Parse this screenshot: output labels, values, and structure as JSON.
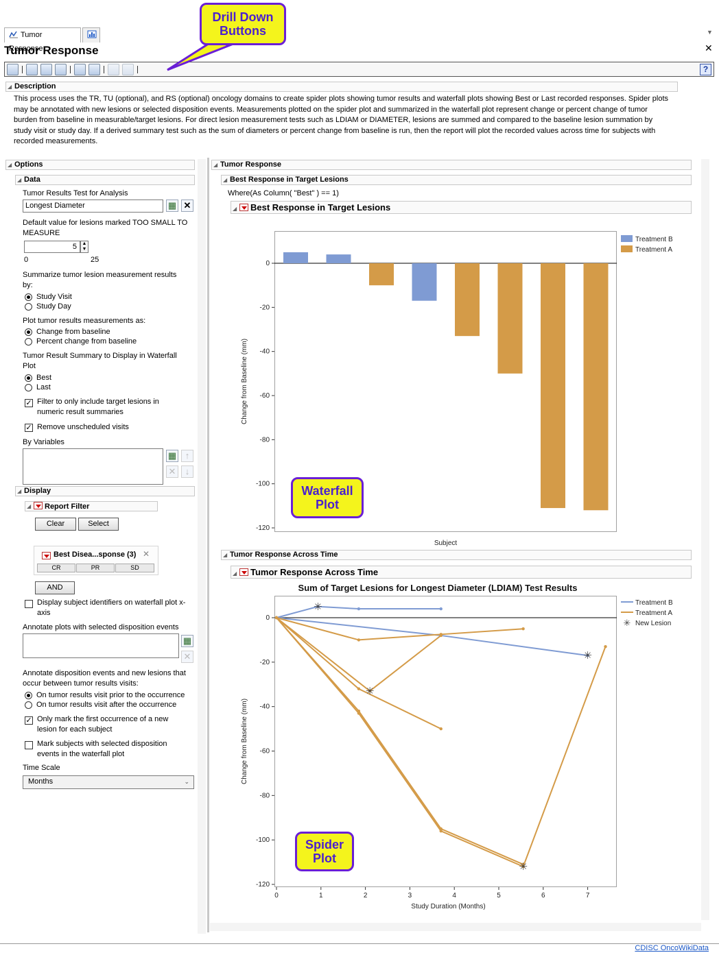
{
  "tabs": [
    {
      "label": "Tumor Response",
      "icon": "tumor-response-icon"
    },
    {
      "label": "",
      "icon": "chart-icon"
    }
  ],
  "window_title": "Tumor Response",
  "callouts": {
    "drill_down": "Drill Down Buttons",
    "waterfall": "Waterfall Plot",
    "spider": "Spider Plot"
  },
  "description": {
    "header": "Description",
    "text": "This process uses the TR, TU (optional), and RS (optional) oncology domains to create spider plots showing tumor results and waterfall plots showing Best or Last recorded responses. Spider plots may be annotated with new lesions or selected disposition events. Measurements plotted on the spider plot and summarized in the waterfall plot represent change or percent change of tumor burden from baseline in measurable/target lesions. For direct lesion measurement tests such as LDIAM or DIAMETER, lesions are summed and compared to the baseline lesion summation by study visit or study day. If a derived summary test such as the sum of diameters or percent change from baseline is run, then the report will plot the recorded values across time for subjects with recorded measurements."
  },
  "options": {
    "header": "Options",
    "data_header": "Data",
    "test_label": "Tumor Results Test for Analysis",
    "test_value": "Longest Diameter",
    "default_label": "Default value for lesions marked TOO SMALL TO MEASURE",
    "default_value": "5",
    "slider_min": "0",
    "slider_max": "25",
    "summarize_label": "Summarize tumor lesion measurement results by:",
    "summarize_opts": [
      "Study Visit",
      "Study Day"
    ],
    "plot_as_label": "Plot tumor results measurements as:",
    "plot_as_opts": [
      "Change from baseline",
      "Percent change from baseline"
    ],
    "summary_label": "Tumor Result Summary to Display in Waterfall Plot",
    "summary_opts": [
      "Best",
      "Last"
    ],
    "filter_target": "Filter to only include target lesions in numeric result summaries",
    "remove_unsched": "Remove unscheduled visits",
    "by_vars_label": "By Variables",
    "display_header": "Display",
    "report_filter": "Report Filter",
    "clear": "Clear",
    "select": "Select",
    "filter_title": "Best Disea...sponse (3)",
    "filter_levels": [
      "CR",
      "PR",
      "SD"
    ],
    "and_btn": "AND",
    "display_ids": "Display subject identifiers on waterfall plot x-axis",
    "annotate_label": "Annotate plots with selected disposition events",
    "annotate_between": "Annotate disposition events and new lesions that occur between tumor results visits:",
    "annotate_opts": [
      "On tumor results visit prior to the occurrence",
      "On tumor results visit after the occurrence"
    ],
    "first_occurrence": "Only mark the first occurrence of a new lesion for each subject",
    "mark_subjects": "Mark subjects with selected disposition events in the waterfall plot",
    "time_scale_label": "Time Scale",
    "time_scale_value": "Months"
  },
  "report": {
    "header": "Tumor Response",
    "best_outer": "Best Response in Target Lesions",
    "where": "Where(As Column( \"Best\" ) == 1)",
    "best_inner": "Best Response in Target Lesions",
    "across_outer": "Tumor Response Across Time",
    "across_inner": "Tumor Response Across Time"
  },
  "colors": {
    "treatment_b": "#7f9bd3",
    "treatment_a": "#d49b48",
    "new_lesion": "#444444"
  },
  "chart_data": [
    {
      "type": "bar",
      "title": "",
      "xlabel": "Subject",
      "ylabel": "Change from Baseline (mm)",
      "ylim": [
        -120,
        5
      ],
      "yticks": [
        0,
        -20,
        -40,
        -60,
        -80,
        -100,
        -120
      ],
      "bars": [
        {
          "series": "Treatment B",
          "value": 5
        },
        {
          "series": "Treatment B",
          "value": 4
        },
        {
          "series": "Treatment A",
          "value": -10
        },
        {
          "series": "Treatment B",
          "value": -17
        },
        {
          "series": "Treatment A",
          "value": -33
        },
        {
          "series": "Treatment A",
          "value": -50
        },
        {
          "series": "Treatment A",
          "value": -111
        },
        {
          "series": "Treatment A",
          "value": -112
        }
      ],
      "legend": [
        "Treatment B",
        "Treatment A"
      ],
      "legend_position": "right"
    },
    {
      "type": "line",
      "title": "Sum of Target Lesions for Longest Diameter (LDIAM) Test Results",
      "xlabel": "Study Duration (Months)",
      "ylabel": "Change from Baseline (mm)",
      "xlim": [
        0,
        7.5
      ],
      "ylim": [
        -120,
        5
      ],
      "xticks": [
        0,
        1,
        2,
        3,
        4,
        5,
        6,
        7
      ],
      "yticks": [
        0,
        -20,
        -40,
        -60,
        -80,
        -100,
        -120
      ],
      "legend": [
        "Treatment B",
        "Treatment A",
        "New Lesion"
      ],
      "legend_position": "right",
      "series": [
        {
          "group": "Treatment B",
          "points": [
            [
              0,
              0
            ],
            [
              0.93,
              5
            ],
            [
              1.85,
              4
            ],
            [
              3.7,
              4
            ]
          ]
        },
        {
          "group": "Treatment B",
          "points": [
            [
              0,
              0
            ],
            [
              3.7,
              -8
            ],
            [
              7.0,
              -17
            ]
          ]
        },
        {
          "group": "Treatment A",
          "points": [
            [
              0,
              0
            ],
            [
              1.85,
              -10
            ],
            [
              3.7,
              -7.5
            ],
            [
              5.55,
              -5
            ]
          ]
        },
        {
          "group": "Treatment A",
          "points": [
            [
              0,
              0
            ],
            [
              1.85,
              -32
            ],
            [
              3.7,
              -50
            ]
          ]
        },
        {
          "group": "Treatment A",
          "points": [
            [
              0,
              0
            ],
            [
              2.1,
              -33
            ],
            [
              3.7,
              -8
            ]
          ]
        },
        {
          "group": "Treatment A",
          "points": [
            [
              0,
              0
            ],
            [
              1.85,
              -42
            ],
            [
              3.7,
              -95
            ],
            [
              5.55,
              -111
            ]
          ]
        },
        {
          "group": "Treatment A",
          "points": [
            [
              0,
              0
            ],
            [
              1.85,
              -43
            ],
            [
              3.7,
              -96
            ],
            [
              5.55,
              -112
            ],
            [
              7.4,
              -13
            ]
          ]
        }
      ],
      "new_lesions": [
        [
          0.93,
          5
        ],
        [
          2.1,
          -33
        ],
        [
          7.0,
          -17
        ],
        [
          5.55,
          -112
        ]
      ]
    }
  ],
  "footer_link": "CDISC OncoWikiData"
}
